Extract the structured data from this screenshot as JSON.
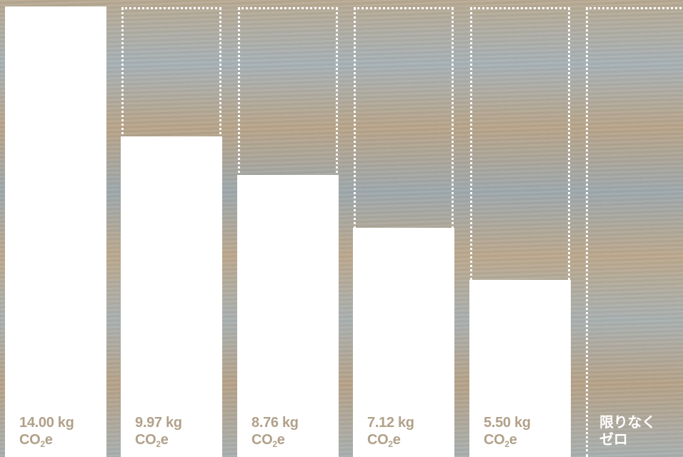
{
  "colors": {
    "bar": "#ffffff",
    "label": "#b1a18a",
    "label_zero": "#ffffff"
  },
  "chart_data": {
    "type": "bar",
    "categories": [
      "14.00 kg CO2e",
      "9.97 kg CO2e",
      "8.76 kg CO2e",
      "7.12 kg CO2e",
      "5.50 kg CO2e",
      "限りなくゼロ"
    ],
    "values": [
      14.0,
      9.97,
      8.76,
      7.12,
      5.5,
      0
    ],
    "unit": "kg CO2e",
    "ylim": [
      0,
      14.0
    ],
    "grid": false,
    "labels": [
      {
        "value_text": "14.00 kg",
        "unit_prefix": "CO",
        "unit_sub": "2",
        "unit_suffix": "e"
      },
      {
        "value_text": "9.97 kg",
        "unit_prefix": "CO",
        "unit_sub": "2",
        "unit_suffix": "e"
      },
      {
        "value_text": "8.76 kg",
        "unit_prefix": "CO",
        "unit_sub": "2",
        "unit_suffix": "e"
      },
      {
        "value_text": "7.12 kg",
        "unit_prefix": "CO",
        "unit_sub": "2",
        "unit_suffix": "e"
      },
      {
        "value_text": "5.50 kg",
        "unit_prefix": "CO",
        "unit_sub": "2",
        "unit_suffix": "e"
      },
      {
        "value_text": "限りなく",
        "unit_prefix": "ゼロ",
        "unit_sub": "",
        "unit_suffix": ""
      }
    ]
  }
}
